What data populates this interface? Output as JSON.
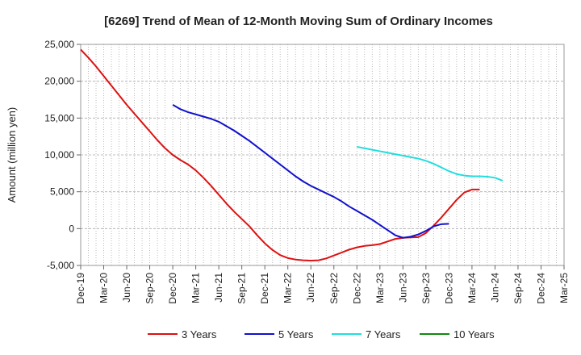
{
  "chart_data": {
    "type": "line",
    "title": "[6269]  Trend of Mean of 12-Month Moving Sum of Ordinary Incomes",
    "xlabel": "",
    "ylabel": "Amount (million yen)",
    "ylim": [
      -5000,
      25000
    ],
    "yticks": [
      25000,
      20000,
      15000,
      10000,
      5000,
      0,
      -5000
    ],
    "ytick_labels": [
      "25,000",
      "20,000",
      "15,000",
      "10,000",
      "5,000",
      "0",
      "-5,000"
    ],
    "x_start": "2019-12",
    "x_end": "2025-03",
    "xtick_labels": [
      "Dec-19",
      "Mar-20",
      "Jun-20",
      "Sep-20",
      "Dec-20",
      "Mar-21",
      "Jun-21",
      "Sep-21",
      "Dec-21",
      "Mar-22",
      "Jun-22",
      "Sep-22",
      "Dec-22",
      "Mar-23",
      "Jun-23",
      "Sep-23",
      "Dec-23",
      "Mar-24",
      "Jun-24",
      "Sep-24",
      "Dec-24",
      "Mar-25"
    ],
    "grid": true,
    "legend_position": "bottom",
    "series": [
      {
        "name": "3 Years",
        "color": "#dd1111",
        "start_index": 0,
        "values": [
          24300,
          23200,
          22000,
          20700,
          19400,
          18100,
          16800,
          15600,
          14400,
          13200,
          12000,
          10900,
          10000,
          9300,
          8700,
          7900,
          6900,
          5800,
          4600,
          3400,
          2300,
          1300,
          300,
          -900,
          -2000,
          -2900,
          -3600,
          -4000,
          -4200,
          -4300,
          -4350,
          -4300,
          -4050,
          -3650,
          -3250,
          -2850,
          -2550,
          -2350,
          -2250,
          -2100,
          -1750,
          -1400,
          -1250,
          -1200,
          -1150,
          -600,
          400,
          1500,
          2700,
          3900,
          4900,
          5300,
          5300
        ]
      },
      {
        "name": "5 Years",
        "color": "#1111cc",
        "start_index": 12,
        "values": [
          16800,
          16200,
          15800,
          15500,
          15200,
          14900,
          14500,
          13900,
          13300,
          12600,
          11900,
          11100,
          10300,
          9500,
          8700,
          7900,
          7100,
          6400,
          5800,
          5300,
          4800,
          4300,
          3700,
          3000,
          2400,
          1800,
          1200,
          500,
          -200,
          -900,
          -1250,
          -1100,
          -800,
          -300,
          300,
          600,
          650
        ]
      },
      {
        "name": "7 Years",
        "color": "#22dddd",
        "start_index": 36,
        "values": [
          11100,
          10900,
          10700,
          10500,
          10300,
          10100,
          9900,
          9700,
          9500,
          9200,
          8800,
          8300,
          7800,
          7400,
          7200,
          7100,
          7100,
          7050,
          6900,
          6500
        ]
      },
      {
        "name": "10 Years",
        "color": "#118811",
        "start_index": 0,
        "values": []
      }
    ]
  }
}
